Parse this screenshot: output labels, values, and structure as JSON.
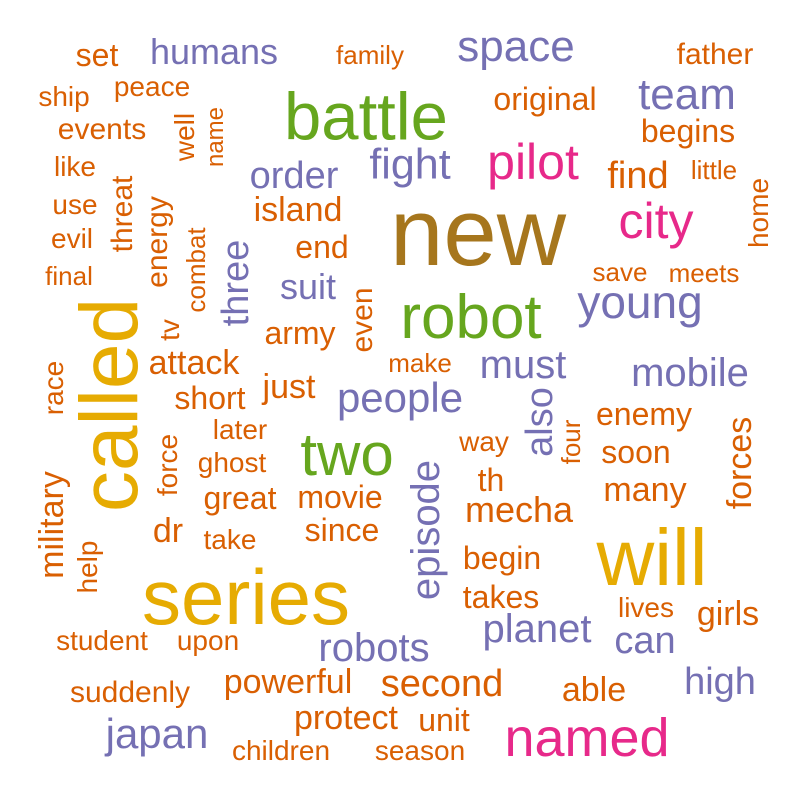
{
  "palette": {
    "orange": "#D95F02",
    "purple": "#7570B3",
    "pink": "#E7298A",
    "green": "#66A61E",
    "gold": "#E6AB02",
    "brown": "#A6761D"
  },
  "words": [
    {
      "text": "new",
      "color": "brown",
      "weight": 10,
      "vertical": false
    },
    {
      "text": "called",
      "color": "gold",
      "weight": 9,
      "vertical": true
    },
    {
      "text": "series",
      "color": "gold",
      "weight": 9,
      "vertical": false
    },
    {
      "text": "will",
      "color": "gold",
      "weight": 9,
      "vertical": false
    },
    {
      "text": "battle",
      "color": "green",
      "weight": 8,
      "vertical": false
    },
    {
      "text": "robot",
      "color": "green",
      "weight": 8,
      "vertical": false
    },
    {
      "text": "two",
      "color": "green",
      "weight": 8,
      "vertical": false
    },
    {
      "text": "named",
      "color": "pink",
      "weight": 7,
      "vertical": false
    },
    {
      "text": "pilot",
      "color": "pink",
      "weight": 7,
      "vertical": false
    },
    {
      "text": "city",
      "color": "pink",
      "weight": 7,
      "vertical": false
    },
    {
      "text": "space",
      "color": "purple",
      "weight": 6,
      "vertical": false
    },
    {
      "text": "team",
      "color": "purple",
      "weight": 6,
      "vertical": false
    },
    {
      "text": "young",
      "color": "purple",
      "weight": 6,
      "vertical": false
    },
    {
      "text": "fight",
      "color": "purple",
      "weight": 6,
      "vertical": false
    },
    {
      "text": "order",
      "color": "purple",
      "weight": 6,
      "vertical": false
    },
    {
      "text": "humans",
      "color": "purple",
      "weight": 5,
      "vertical": false
    },
    {
      "text": "three",
      "color": "purple",
      "weight": 5,
      "vertical": true
    },
    {
      "text": "must",
      "color": "purple",
      "weight": 5,
      "vertical": false
    },
    {
      "text": "mobile",
      "color": "purple",
      "weight": 5,
      "vertical": false
    },
    {
      "text": "people",
      "color": "purple",
      "weight": 5,
      "vertical": false
    },
    {
      "text": "suit",
      "color": "purple",
      "weight": 5,
      "vertical": false
    },
    {
      "text": "also",
      "color": "purple",
      "weight": 5,
      "vertical": true
    },
    {
      "text": "episode",
      "color": "purple",
      "weight": 5,
      "vertical": true
    },
    {
      "text": "planet",
      "color": "purple",
      "weight": 5,
      "vertical": false
    },
    {
      "text": "robots",
      "color": "purple",
      "weight": 5,
      "vertical": false
    },
    {
      "text": "can",
      "color": "purple",
      "weight": 5,
      "vertical": false
    },
    {
      "text": "high",
      "color": "purple",
      "weight": 5,
      "vertical": false
    },
    {
      "text": "japan",
      "color": "purple",
      "weight": 5,
      "vertical": false
    },
    {
      "text": "set",
      "color": "orange",
      "weight": 4,
      "vertical": false
    },
    {
      "text": "family",
      "color": "orange",
      "weight": 2,
      "vertical": false
    },
    {
      "text": "father",
      "color": "orange",
      "weight": 3,
      "vertical": false
    },
    {
      "text": "ship",
      "color": "orange",
      "weight": 2,
      "vertical": false
    },
    {
      "text": "peace",
      "color": "orange",
      "weight": 2,
      "vertical": false
    },
    {
      "text": "original",
      "color": "orange",
      "weight": 3,
      "vertical": false
    },
    {
      "text": "events",
      "color": "orange",
      "weight": 3,
      "vertical": false
    },
    {
      "text": "well",
      "color": "orange",
      "weight": 2,
      "vertical": true
    },
    {
      "text": "name",
      "color": "orange",
      "weight": 2,
      "vertical": true
    },
    {
      "text": "begins",
      "color": "orange",
      "weight": 3,
      "vertical": false
    },
    {
      "text": "like",
      "color": "orange",
      "weight": 2,
      "vertical": false
    },
    {
      "text": "threat",
      "color": "orange",
      "weight": 3,
      "vertical": true
    },
    {
      "text": "find",
      "color": "orange",
      "weight": 4,
      "vertical": false
    },
    {
      "text": "little",
      "color": "orange",
      "weight": 2,
      "vertical": false
    },
    {
      "text": "use",
      "color": "orange",
      "weight": 2,
      "vertical": false
    },
    {
      "text": "energy",
      "color": "orange",
      "weight": 3,
      "vertical": true
    },
    {
      "text": "island",
      "color": "orange",
      "weight": 3,
      "vertical": false
    },
    {
      "text": "home",
      "color": "orange",
      "weight": 2,
      "vertical": true
    },
    {
      "text": "evil",
      "color": "orange",
      "weight": 2,
      "vertical": false
    },
    {
      "text": "combat",
      "color": "orange",
      "weight": 2,
      "vertical": true
    },
    {
      "text": "end",
      "color": "orange",
      "weight": 3,
      "vertical": false
    },
    {
      "text": "final",
      "color": "orange",
      "weight": 2,
      "vertical": false
    },
    {
      "text": "save",
      "color": "orange",
      "weight": 2,
      "vertical": false
    },
    {
      "text": "meets",
      "color": "orange",
      "weight": 2,
      "vertical": false
    },
    {
      "text": "tv",
      "color": "orange",
      "weight": 2,
      "vertical": true
    },
    {
      "text": "army",
      "color": "orange",
      "weight": 3,
      "vertical": false
    },
    {
      "text": "even",
      "color": "orange",
      "weight": 3,
      "vertical": true
    },
    {
      "text": "race",
      "color": "orange",
      "weight": 2,
      "vertical": true
    },
    {
      "text": "attack",
      "color": "orange",
      "weight": 3,
      "vertical": false
    },
    {
      "text": "make",
      "color": "orange",
      "weight": 2,
      "vertical": false
    },
    {
      "text": "just",
      "color": "orange",
      "weight": 3,
      "vertical": false
    },
    {
      "text": "short",
      "color": "orange",
      "weight": 3,
      "vertical": false
    },
    {
      "text": "enemy",
      "color": "orange",
      "weight": 3,
      "vertical": false
    },
    {
      "text": "later",
      "color": "orange",
      "weight": 2,
      "vertical": false
    },
    {
      "text": "way",
      "color": "orange",
      "weight": 2,
      "vertical": false
    },
    {
      "text": "four",
      "color": "orange",
      "weight": 2,
      "vertical": true
    },
    {
      "text": "force",
      "color": "orange",
      "weight": 2,
      "vertical": true
    },
    {
      "text": "ghost",
      "color": "orange",
      "weight": 2,
      "vertical": false
    },
    {
      "text": "soon",
      "color": "orange",
      "weight": 3,
      "vertical": false
    },
    {
      "text": "forces",
      "color": "orange",
      "weight": 3,
      "vertical": true
    },
    {
      "text": "military",
      "color": "orange",
      "weight": 3,
      "vertical": true
    },
    {
      "text": "th",
      "color": "orange",
      "weight": 3,
      "vertical": false
    },
    {
      "text": "great",
      "color": "orange",
      "weight": 3,
      "vertical": false
    },
    {
      "text": "movie",
      "color": "orange",
      "weight": 3,
      "vertical": false
    },
    {
      "text": "many",
      "color": "orange",
      "weight": 3,
      "vertical": false
    },
    {
      "text": "mecha",
      "color": "orange",
      "weight": 3,
      "vertical": false
    },
    {
      "text": "dr",
      "color": "orange",
      "weight": 3,
      "vertical": false
    },
    {
      "text": "since",
      "color": "orange",
      "weight": 3,
      "vertical": false
    },
    {
      "text": "help",
      "color": "orange",
      "weight": 2,
      "vertical": true
    },
    {
      "text": "take",
      "color": "orange",
      "weight": 2,
      "vertical": false
    },
    {
      "text": "begin",
      "color": "orange",
      "weight": 3,
      "vertical": false
    },
    {
      "text": "takes",
      "color": "orange",
      "weight": 3,
      "vertical": false
    },
    {
      "text": "lives",
      "color": "orange",
      "weight": 2,
      "vertical": false
    },
    {
      "text": "girls",
      "color": "orange",
      "weight": 3,
      "vertical": false
    },
    {
      "text": "student",
      "color": "orange",
      "weight": 2,
      "vertical": false
    },
    {
      "text": "upon",
      "color": "orange",
      "weight": 2,
      "vertical": false
    },
    {
      "text": "powerful",
      "color": "orange",
      "weight": 3,
      "vertical": false
    },
    {
      "text": "second",
      "color": "orange",
      "weight": 4,
      "vertical": false
    },
    {
      "text": "able",
      "color": "orange",
      "weight": 3,
      "vertical": false
    },
    {
      "text": "suddenly",
      "color": "orange",
      "weight": 3,
      "vertical": false
    },
    {
      "text": "protect",
      "color": "orange",
      "weight": 3,
      "vertical": false
    },
    {
      "text": "unit",
      "color": "orange",
      "weight": 3,
      "vertical": false
    },
    {
      "text": "children",
      "color": "orange",
      "weight": 2,
      "vertical": false
    },
    {
      "text": "season",
      "color": "orange",
      "weight": 2,
      "vertical": false
    }
  ]
}
